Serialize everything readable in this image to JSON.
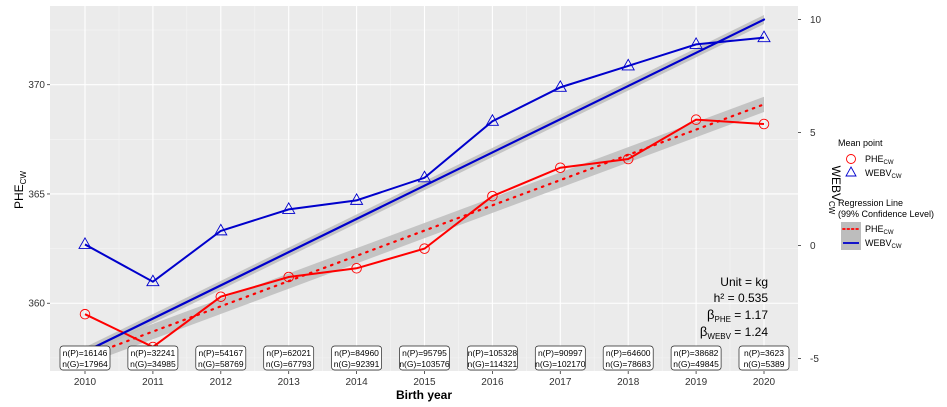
{
  "chart_data": {
    "type": "line",
    "x": [
      2010,
      2011,
      2012,
      2013,
      2014,
      2015,
      2016,
      2017,
      2018,
      2019,
      2020
    ],
    "xlabel": "Birth year",
    "ylabel_left_main": "PHE",
    "ylabel_left_sub": "CW",
    "ylabel_right_main": "WEBV",
    "ylabel_right_sub": "CW",
    "ylim_left": [
      356.9,
      373.6
    ],
    "ylim_right": [
      -5.55,
      10.6
    ],
    "yticks_left": [
      360,
      365,
      370
    ],
    "yticks_right": [
      -5,
      0,
      5,
      10
    ],
    "series": [
      {
        "name": "PHE",
        "name_sub": "CW",
        "axis": "left",
        "color": "#ff0000",
        "marker": "circle",
        "values": [
          359.5,
          358.0,
          360.3,
          361.2,
          361.6,
          362.5,
          364.9,
          366.2,
          366.6,
          368.4,
          368.2
        ]
      },
      {
        "name": "WEBV",
        "name_sub": "CW",
        "axis": "right",
        "color": "#0000cc",
        "marker": "triangle",
        "values": [
          0.05,
          -1.6,
          0.65,
          1.6,
          2.0,
          3.0,
          5.5,
          7.0,
          7.95,
          8.9,
          9.2
        ]
      }
    ],
    "regression": [
      {
        "series": "PHE",
        "axis": "left",
        "start": [
          2010,
          357.55
        ],
        "end": [
          2020,
          369.1
        ],
        "band": 0.35,
        "style": "dotted",
        "color": "#ff0000"
      },
      {
        "series": "WEBV",
        "axis": "right",
        "start": [
          2010,
          -4.7
        ],
        "end": [
          2020,
          10.0
        ],
        "band": 0.2,
        "style": "solid",
        "color": "#0000cc"
      }
    ],
    "counts": [
      {
        "year": 2010,
        "p": "n(P)=16146",
        "g": "n(G)=17964"
      },
      {
        "year": 2011,
        "p": "n(P)=32241",
        "g": "n(G)=34985"
      },
      {
        "year": 2012,
        "p": "n(P)=54167",
        "g": "n(G)=58769"
      },
      {
        "year": 2013,
        "p": "n(P)=62021",
        "g": "n(G)=67793"
      },
      {
        "year": 2014,
        "p": "n(P)=84960",
        "g": "n(G)=92391"
      },
      {
        "year": 2015,
        "p": "n(P)=95795",
        "g": "n(G)=103576"
      },
      {
        "year": 2016,
        "p": "n(P)=105328",
        "g": "n(G)=114321"
      },
      {
        "year": 2017,
        "p": "n(P)=90997",
        "g": "n(G)=102170"
      },
      {
        "year": 2018,
        "p": "n(P)=64600",
        "g": "n(G)=78683"
      },
      {
        "year": 2019,
        "p": "n(P)=38682",
        "g": "n(G)=49845"
      },
      {
        "year": 2020,
        "p": "n(P)=3623",
        "g": "n(G)=5389"
      }
    ],
    "annotations": {
      "unit": "Unit = kg",
      "h2": "h² = 0.535",
      "beta_phe_sym": "β",
      "beta_phe_sub": "PHE",
      "beta_phe_val": " = 1.17",
      "beta_webv_sym": "β",
      "beta_webv_sub": "WEBV",
      "beta_webv_val": " = 1.24"
    },
    "legend": {
      "placement": "right",
      "mean_title": "Mean point",
      "mean_phe": "PHE",
      "mean_phe_sub": "CW",
      "mean_webv": "WEBV",
      "mean_webv_sub": "CW",
      "reg_title_1": "Regression Line",
      "reg_title_2": "(99% Confidence Level)",
      "reg_phe": "PHE",
      "reg_phe_sub": "CW",
      "reg_webv": "WEBV",
      "reg_webv_sub": "CW"
    },
    "grid": true,
    "panel_bg": "#ebebeb",
    "band_color": "#bdbdbd"
  }
}
